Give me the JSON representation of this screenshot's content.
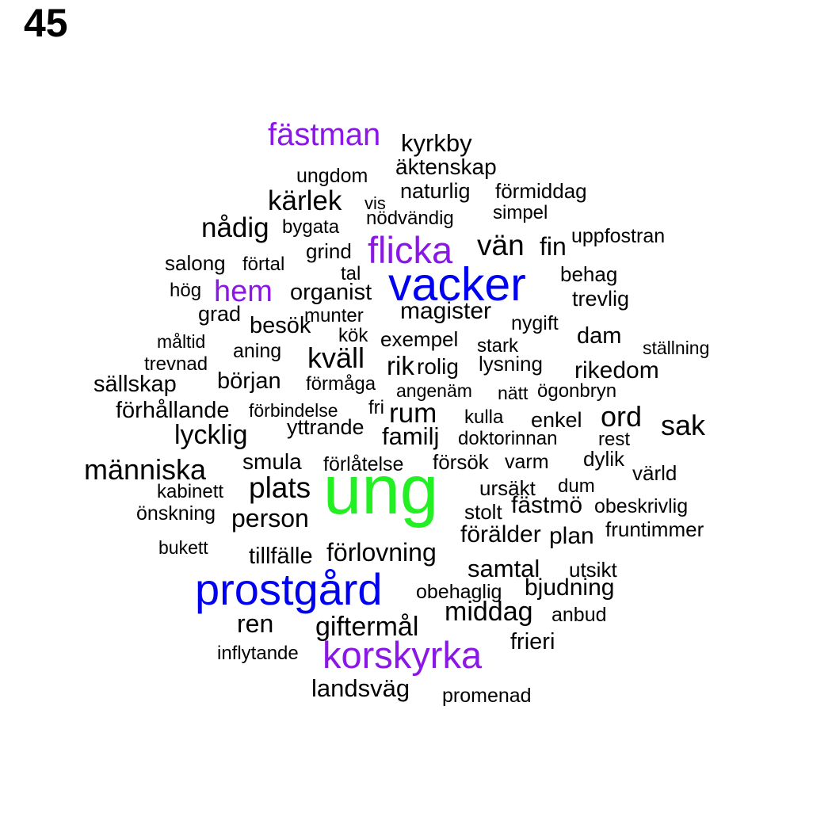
{
  "page_number": "45",
  "colors": {
    "black": "#000000",
    "purple": "#8a17e6",
    "blue": "#0000f0",
    "green": "#22f022"
  },
  "words": [
    {
      "text": "fästman",
      "color": "purple"
    },
    {
      "text": "kyrkby",
      "color": "black"
    },
    {
      "text": "äktenskap",
      "color": "black"
    },
    {
      "text": "ungdom",
      "color": "black"
    },
    {
      "text": "kärlek",
      "color": "black"
    },
    {
      "text": "vis",
      "color": "black"
    },
    {
      "text": "naturlig",
      "color": "black"
    },
    {
      "text": "förmiddag",
      "color": "black"
    },
    {
      "text": "nådig",
      "color": "black"
    },
    {
      "text": "bygata",
      "color": "black"
    },
    {
      "text": "nödvändig",
      "color": "black"
    },
    {
      "text": "simpel",
      "color": "black"
    },
    {
      "text": "flicka",
      "color": "purple"
    },
    {
      "text": "vän",
      "color": "black"
    },
    {
      "text": "fin",
      "color": "black"
    },
    {
      "text": "uppfostran",
      "color": "black"
    },
    {
      "text": "salong",
      "color": "black"
    },
    {
      "text": "förtal",
      "color": "black"
    },
    {
      "text": "grind",
      "color": "black"
    },
    {
      "text": "tal",
      "color": "black"
    },
    {
      "text": "vacker",
      "color": "blue"
    },
    {
      "text": "behag",
      "color": "black"
    },
    {
      "text": "hög",
      "color": "black"
    },
    {
      "text": "hem",
      "color": "purple"
    },
    {
      "text": "organist",
      "color": "black"
    },
    {
      "text": "trevlig",
      "color": "black"
    },
    {
      "text": "grad",
      "color": "black"
    },
    {
      "text": "munter",
      "color": "black"
    },
    {
      "text": "magister",
      "color": "black"
    },
    {
      "text": "besök",
      "color": "black"
    },
    {
      "text": "kök",
      "color": "black"
    },
    {
      "text": "nygift",
      "color": "black"
    },
    {
      "text": "måltid",
      "color": "black"
    },
    {
      "text": "exempel",
      "color": "black"
    },
    {
      "text": "dam",
      "color": "black"
    },
    {
      "text": "aning",
      "color": "black"
    },
    {
      "text": "stark",
      "color": "black"
    },
    {
      "text": "ställning",
      "color": "black"
    },
    {
      "text": "kväll",
      "color": "black"
    },
    {
      "text": "trevnad",
      "color": "black"
    },
    {
      "text": "rik",
      "color": "black"
    },
    {
      "text": "rolig",
      "color": "black"
    },
    {
      "text": "lysning",
      "color": "black"
    },
    {
      "text": "rikedom",
      "color": "black"
    },
    {
      "text": "sällskap",
      "color": "black"
    },
    {
      "text": "början",
      "color": "black"
    },
    {
      "text": "förmåga",
      "color": "black"
    },
    {
      "text": "angenäm",
      "color": "black"
    },
    {
      "text": "nätt",
      "color": "black"
    },
    {
      "text": "ögonbryn",
      "color": "black"
    },
    {
      "text": "förhållande",
      "color": "black"
    },
    {
      "text": "förbindelse",
      "color": "black"
    },
    {
      "text": "fri",
      "color": "black"
    },
    {
      "text": "rum",
      "color": "black"
    },
    {
      "text": "kulla",
      "color": "black"
    },
    {
      "text": "enkel",
      "color": "black"
    },
    {
      "text": "ord",
      "color": "black"
    },
    {
      "text": "sak",
      "color": "black"
    },
    {
      "text": "lycklig",
      "color": "black"
    },
    {
      "text": "yttrande",
      "color": "black"
    },
    {
      "text": "familj",
      "color": "black"
    },
    {
      "text": "doktorinnan",
      "color": "black"
    },
    {
      "text": "rest",
      "color": "black"
    },
    {
      "text": "människa",
      "color": "black"
    },
    {
      "text": "smula",
      "color": "black"
    },
    {
      "text": "förlåtelse",
      "color": "black"
    },
    {
      "text": "försök",
      "color": "black"
    },
    {
      "text": "varm",
      "color": "black"
    },
    {
      "text": "dylik",
      "color": "black"
    },
    {
      "text": "värld",
      "color": "black"
    },
    {
      "text": "ung",
      "color": "green"
    },
    {
      "text": "kabinett",
      "color": "black"
    },
    {
      "text": "plats",
      "color": "black"
    },
    {
      "text": "ursäkt",
      "color": "black"
    },
    {
      "text": "dum",
      "color": "black"
    },
    {
      "text": "fästmö",
      "color": "black"
    },
    {
      "text": "obeskrivlig",
      "color": "black"
    },
    {
      "text": "önskning",
      "color": "black"
    },
    {
      "text": "stolt",
      "color": "black"
    },
    {
      "text": "person",
      "color": "black"
    },
    {
      "text": "förälder",
      "color": "black"
    },
    {
      "text": "plan",
      "color": "black"
    },
    {
      "text": "fruntimmer",
      "color": "black"
    },
    {
      "text": "bukett",
      "color": "black"
    },
    {
      "text": "tillfälle",
      "color": "black"
    },
    {
      "text": "förlovning",
      "color": "black"
    },
    {
      "text": "samtal",
      "color": "black"
    },
    {
      "text": "utsikt",
      "color": "black"
    },
    {
      "text": "prostgård",
      "color": "blue"
    },
    {
      "text": "obehaglig",
      "color": "black"
    },
    {
      "text": "bjudning",
      "color": "black"
    },
    {
      "text": "middag",
      "color": "black"
    },
    {
      "text": "anbud",
      "color": "black"
    },
    {
      "text": "ren",
      "color": "black"
    },
    {
      "text": "giftermål",
      "color": "black"
    },
    {
      "text": "frieri",
      "color": "black"
    },
    {
      "text": "inflytande",
      "color": "black"
    },
    {
      "text": "korskyrka",
      "color": "purple"
    },
    {
      "text": "landsväg",
      "color": "black"
    },
    {
      "text": "promenad",
      "color": "black"
    }
  ]
}
